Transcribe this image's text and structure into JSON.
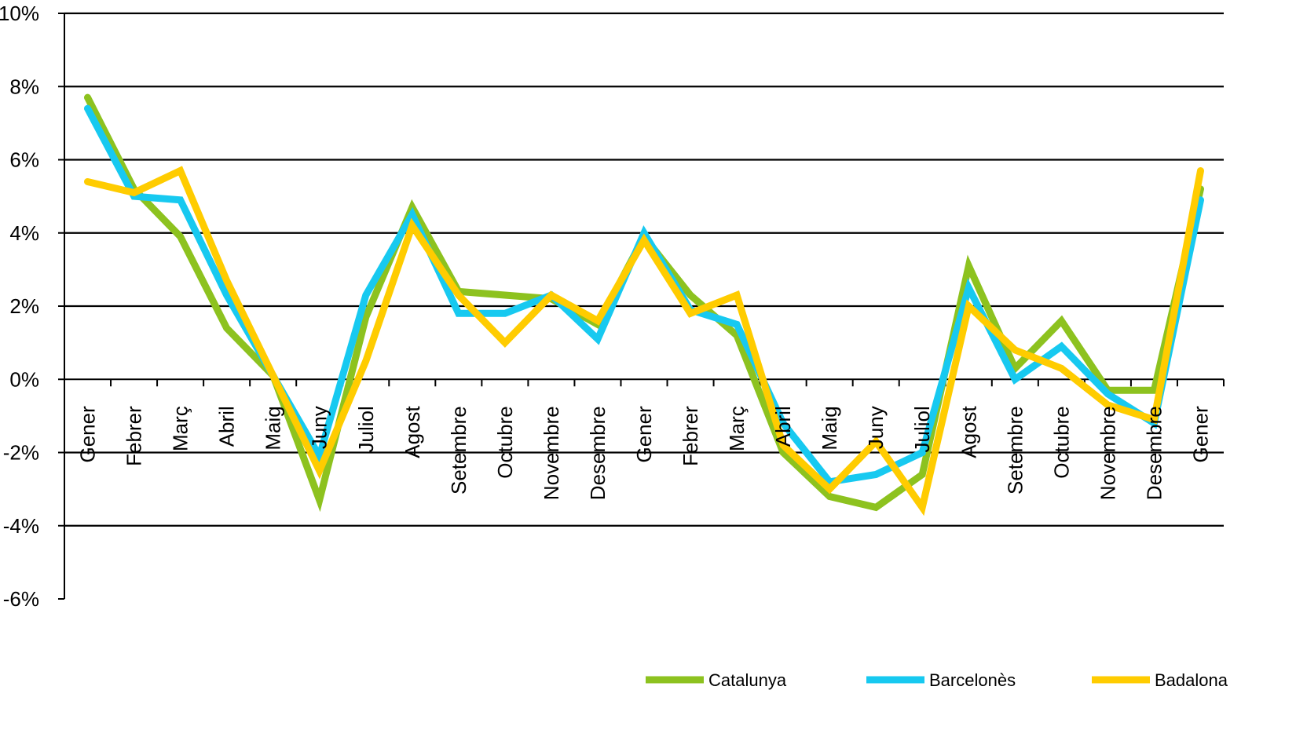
{
  "chart_data": {
    "type": "line",
    "categories": [
      "Gener",
      "Febrer",
      "Març",
      "Abril",
      "Maig",
      "Juny",
      "Juliol",
      "Agost",
      "Setembre",
      "Octubre",
      "Novembre",
      "Desembre",
      "Gener",
      "Febrer",
      "Març",
      "Abril",
      "Maig",
      "Juny",
      "Juliol",
      "Agost",
      "Setembre",
      "Octubre",
      "Novembre",
      "Desembre",
      "Gener"
    ],
    "y_ticks": [
      "10%",
      "8%",
      "6%",
      "4%",
      "2%",
      "0%",
      "-2%",
      "-4%",
      "-6%"
    ],
    "ylim": [
      -6,
      10
    ],
    "grid": true,
    "legend_position": "bottom",
    "series": [
      {
        "name": "Catalunya",
        "color": "#8DC21F",
        "values": [
          7.7,
          5.2,
          3.9,
          1.4,
          0.1,
          -3.3,
          1.7,
          4.7,
          2.4,
          2.3,
          2.2,
          1.5,
          3.9,
          2.3,
          1.2,
          -2.0,
          -3.2,
          -3.5,
          -2.6,
          3.1,
          0.3,
          1.6,
          -0.3,
          -0.3,
          5.2
        ]
      },
      {
        "name": "Barcelonès",
        "color": "#17C9F0",
        "values": [
          7.4,
          5.0,
          4.9,
          2.3,
          0.1,
          -2.1,
          2.3,
          4.5,
          1.8,
          1.8,
          2.3,
          1.1,
          4.0,
          1.9,
          1.5,
          -1.2,
          -2.8,
          -2.6,
          -2.0,
          2.5,
          0.0,
          0.9,
          -0.4,
          -1.2,
          4.9
        ]
      },
      {
        "name": "Badalona",
        "color": "#FFCC00",
        "values": [
          5.4,
          5.1,
          5.7,
          2.7,
          0.1,
          -2.5,
          0.5,
          4.2,
          2.3,
          1.0,
          2.3,
          1.6,
          3.8,
          1.8,
          2.3,
          -1.8,
          -3.0,
          -1.7,
          -3.5,
          2.0,
          0.8,
          0.3,
          -0.7,
          -1.1,
          5.7
        ]
      }
    ]
  }
}
